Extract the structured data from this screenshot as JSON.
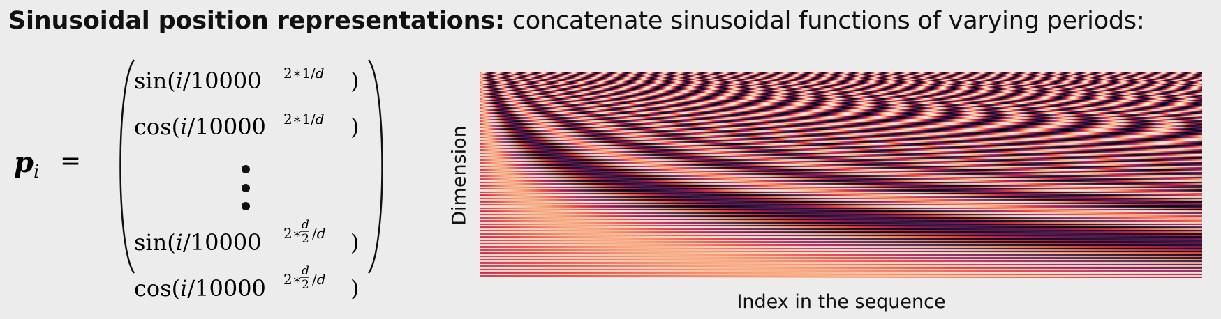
{
  "slide": {
    "title_bold": "Sinusoidal position representations:",
    "title_rest": "concatenate sinusoidal functions of varying periods:"
  },
  "formula": {
    "lhs": "p",
    "lhs_subscript": "i",
    "equals": "=",
    "rows": [
      {
        "func": "sin",
        "arg_prefix": "(",
        "index": "i",
        "base": "/10000",
        "exponent": "2∗1/",
        "exponent_var": "d",
        "close": ")"
      },
      {
        "func": "cos",
        "arg_prefix": "(",
        "index": "i",
        "base": "/10000",
        "exponent": "2∗1/",
        "exponent_var": "d",
        "close": ")"
      },
      {
        "func": "sin",
        "arg_prefix": "(",
        "index": "i",
        "base": "/10000",
        "exponent_pre": "2∗",
        "frac_num": "d",
        "frac_den": "2",
        "exponent_post": "/",
        "exponent_var": "d",
        "close": ")"
      },
      {
        "func": "cos",
        "arg_prefix": "(",
        "index": "i",
        "base": "/10000",
        "exponent_pre": "2∗",
        "frac_num": "d",
        "frac_den": "2",
        "exponent_post": "/",
        "exponent_var": "d",
        "close": ")"
      }
    ]
  },
  "chart_data": {
    "type": "heatmap",
    "title": "",
    "xlabel": "Index in the sequence",
    "ylabel": "Dimension",
    "colormap": "rocket",
    "colors": [
      "#03051a",
      "#4c1d4b",
      "#a11a5b",
      "#e83f3f",
      "#f69c73",
      "#faebdd"
    ]
  }
}
